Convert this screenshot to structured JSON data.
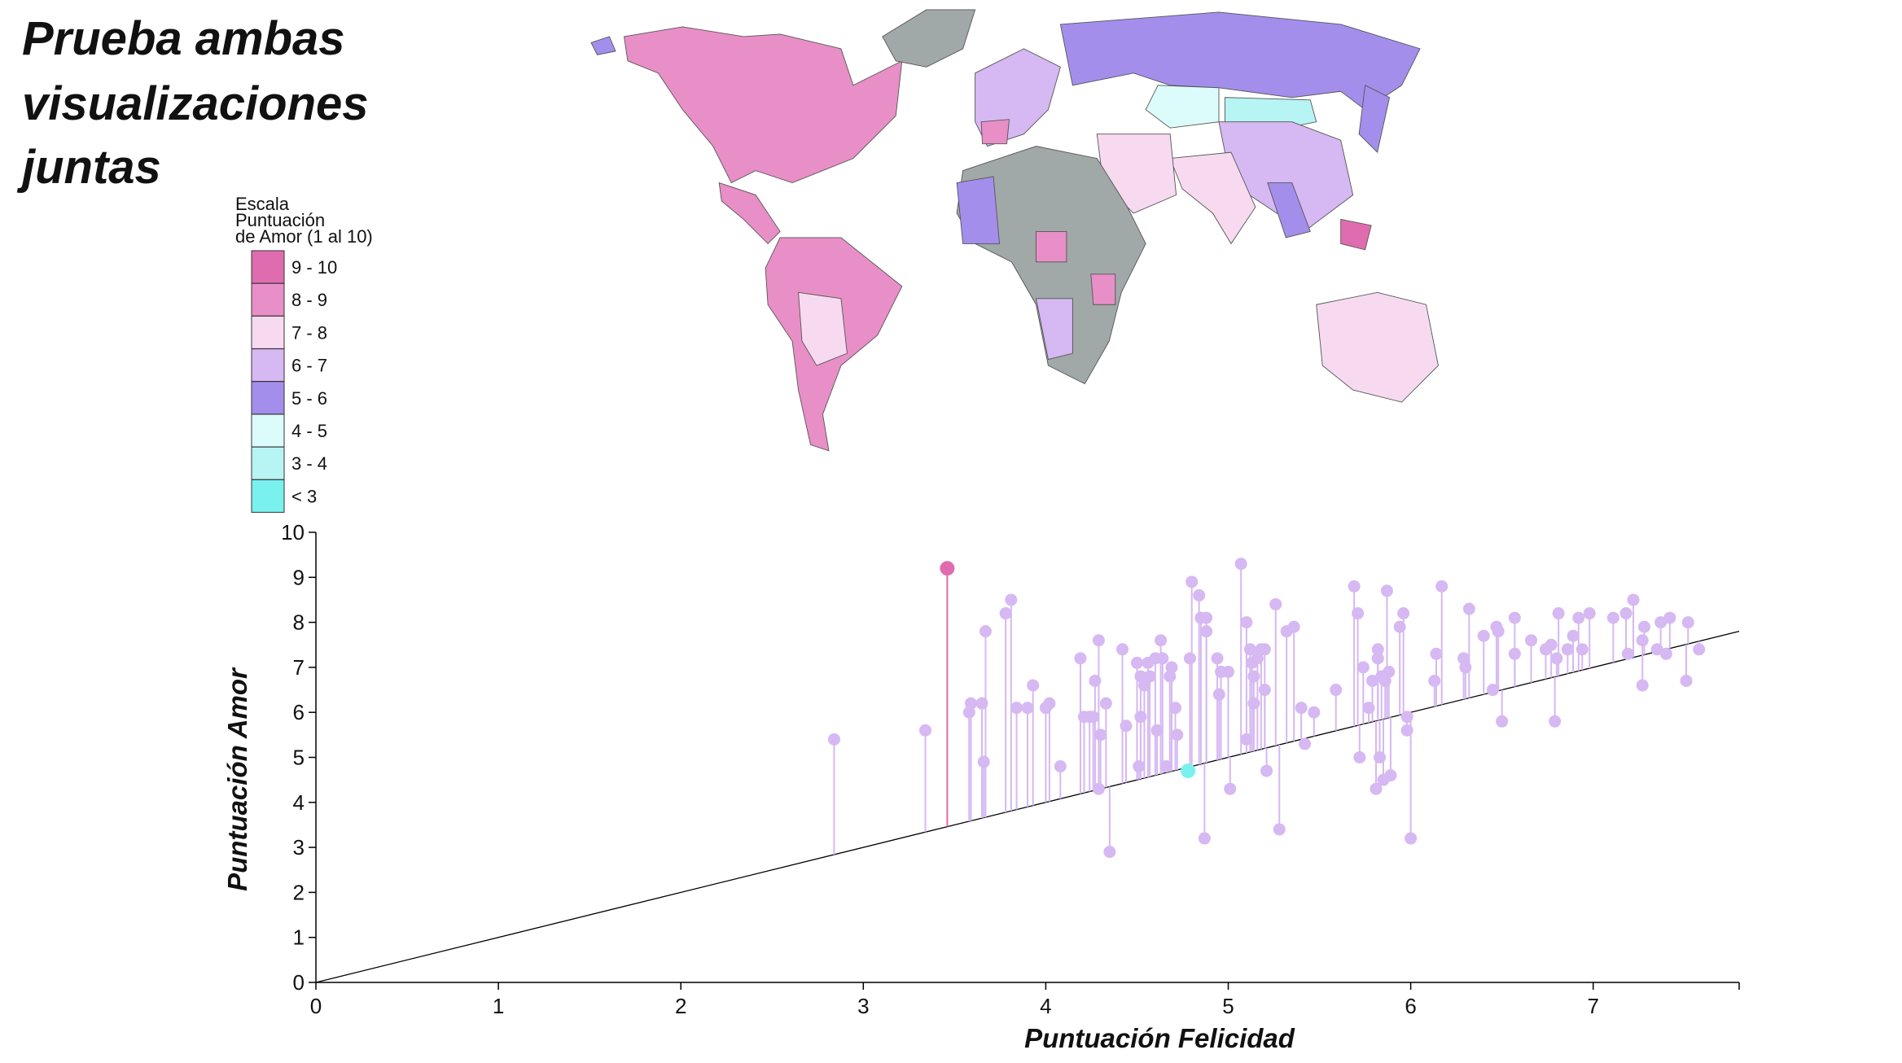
{
  "title": "Prueba ambas visualizaciones juntas",
  "legend": {
    "title": [
      "Escala",
      "Puntuación",
      "de Amor (1 al 10)"
    ],
    "items": [
      {
        "label": "9 - 10",
        "color": "#e06cb0"
      },
      {
        "label": "8 - 9",
        "color": "#e88fc7"
      },
      {
        "label": "7 - 8",
        "color": "#f7daf0"
      },
      {
        "label": "6 - 7",
        "color": "#d6b8f2"
      },
      {
        "label": "5 - 6",
        "color": "#a48eec"
      },
      {
        "label": "4 - 5",
        "color": "#dcfbfb"
      },
      {
        "label": "3 - 4",
        "color": "#b7f4f4"
      },
      {
        "label": "< 3",
        "color": "#7af1ef"
      }
    ]
  },
  "chart_data": {
    "type": "lollipop-scatter",
    "x_label": "Puntuación Felicidad",
    "y_label": "Puntuación Amor",
    "xlim": [
      0,
      7.8
    ],
    "ylim": [
      0,
      10
    ],
    "xticks": [
      0,
      1,
      2,
      3,
      4,
      5,
      6,
      7
    ],
    "yticks": [
      0,
      1,
      2,
      3,
      4,
      5,
      6,
      7,
      8,
      9,
      10
    ],
    "identity_line": true,
    "series": [
      {
        "color": "#d6b8f2",
        "x": [
          2.84,
          3.34,
          3.58,
          3.59,
          3.65,
          3.66,
          3.67,
          3.78,
          3.81,
          3.84,
          3.9,
          3.93,
          4.0,
          4.02,
          4.08,
          4.19,
          4.21,
          4.24,
          4.26,
          4.27,
          4.29,
          4.29,
          4.3,
          4.33,
          4.35,
          4.42,
          4.44,
          4.5,
          4.51,
          4.52,
          4.52,
          4.54,
          4.56,
          4.57,
          4.6,
          4.61,
          4.63,
          4.64,
          4.66,
          4.68,
          4.69,
          4.71,
          4.72,
          4.79,
          4.8,
          4.84,
          4.85,
          4.87,
          4.88,
          4.88,
          4.94,
          4.95,
          4.96,
          5.0,
          5.01,
          5.07,
          5.1,
          5.1,
          5.12,
          5.13,
          5.14,
          5.14,
          5.16,
          5.18,
          5.2,
          5.2,
          5.21,
          5.26,
          5.28,
          5.32,
          5.36,
          5.4,
          5.42,
          5.47,
          5.59,
          5.69,
          5.71,
          5.72,
          5.74,
          5.77,
          5.79,
          5.81,
          5.82,
          5.82,
          5.83,
          5.84,
          5.85,
          5.86,
          5.87,
          5.88,
          5.89,
          5.94,
          5.96,
          5.98,
          5.98,
          6.0,
          6.13,
          6.14,
          6.17,
          6.29,
          6.3,
          6.32,
          6.4,
          6.45,
          6.47,
          6.48,
          6.5,
          6.57,
          6.57,
          6.66,
          6.74,
          6.77,
          6.79,
          6.8,
          6.81,
          6.86,
          6.89,
          6.92,
          6.94,
          6.98,
          7.11,
          7.18,
          7.19,
          7.22,
          7.27,
          7.27,
          7.28,
          7.35,
          7.37,
          7.4,
          7.42,
          7.51,
          7.52,
          7.58
        ],
        "values": [
          5.4,
          5.6,
          6.0,
          6.2,
          6.2,
          4.9,
          7.8,
          8.2,
          8.5,
          6.1,
          6.1,
          6.6,
          6.1,
          6.2,
          4.8,
          7.2,
          5.9,
          5.9,
          5.9,
          6.7,
          7.6,
          4.3,
          5.5,
          6.2,
          2.9,
          7.4,
          5.7,
          7.1,
          4.8,
          6.8,
          5.9,
          6.6,
          7.1,
          6.8,
          7.2,
          5.6,
          7.6,
          7.2,
          4.8,
          6.8,
          7.0,
          6.1,
          5.5,
          7.2,
          8.9,
          8.6,
          8.1,
          3.2,
          7.8,
          8.1,
          7.2,
          6.4,
          6.9,
          6.9,
          4.3,
          9.3,
          8.0,
          5.4,
          7.4,
          7.1,
          6.8,
          6.2,
          7.2,
          7.4,
          7.4,
          6.5,
          4.7,
          8.4,
          3.4,
          7.8,
          7.9,
          6.1,
          5.3,
          6.0,
          6.5,
          8.8,
          8.2,
          5.0,
          7.0,
          6.1,
          6.7,
          4.3,
          7.4,
          7.2,
          5.0,
          6.8,
          4.5,
          6.7,
          8.7,
          6.9,
          4.6,
          7.9,
          8.2,
          5.6,
          5.9,
          3.2,
          6.7,
          7.3,
          8.8,
          7.2,
          7.0,
          8.3,
          7.7,
          6.5,
          7.9,
          7.8,
          5.8,
          7.3,
          8.1,
          7.6,
          7.4,
          7.5,
          5.8,
          7.2,
          8.2,
          7.4,
          7.7,
          8.1,
          7.4,
          8.2,
          8.1,
          8.2,
          7.3,
          8.5,
          7.6,
          6.6,
          7.9,
          7.4,
          8.0,
          7.3,
          8.1,
          6.7,
          8.0,
          7.4
        ]
      },
      {
        "color": "#e06cb0",
        "x": [
          3.46
        ],
        "values": [
          9.2
        ]
      },
      {
        "color": "#7af1ef",
        "x": [
          4.78
        ],
        "values": [
          4.7
        ]
      }
    ]
  }
}
